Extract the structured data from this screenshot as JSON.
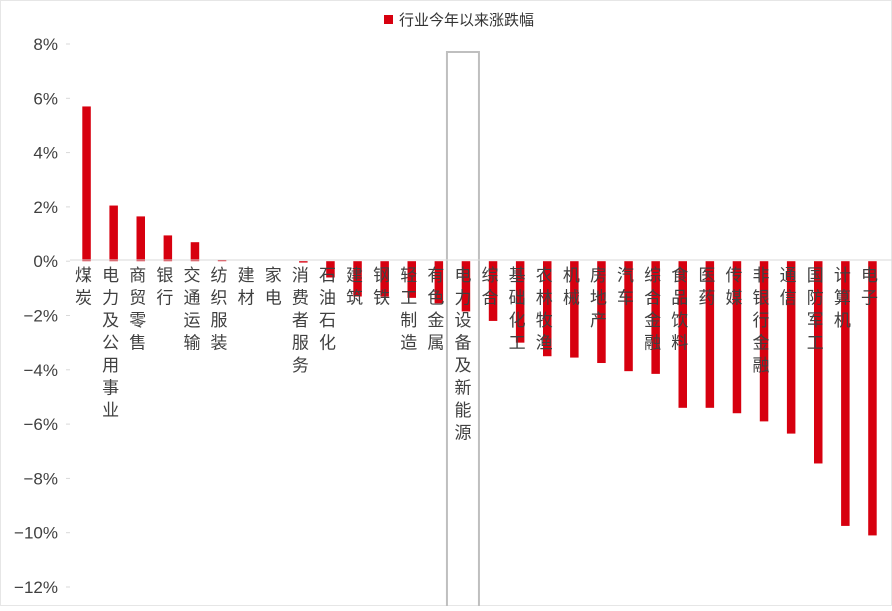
{
  "chart_data": {
    "type": "bar",
    "categories": [
      "煤炭",
      "电力及公用事业",
      "商贸零售",
      "银行",
      "交通运输",
      "纺织服装",
      "建材",
      "家电",
      "消费者服务",
      "石油石化",
      "建筑",
      "钢铁",
      "轻工制造",
      "有色金属",
      "电力设备及新能源",
      "综合",
      "基础化工",
      "农林牧渔",
      "机械",
      "房地产",
      "汽车",
      "综合金融",
      "食品饮料",
      "医药",
      "传媒",
      "非银行金融",
      "通信",
      "国防军工",
      "计算机",
      "电子"
    ],
    "series": [
      {
        "name": "行业今年以来涨跌幅",
        "values": [
          5.7,
          2.05,
          1.65,
          0.95,
          0.7,
          0.05,
          0.0,
          0.0,
          -0.05,
          -0.6,
          -1.3,
          -1.3,
          -1.35,
          -1.55,
          -1.85,
          -2.2,
          -3.0,
          -3.5,
          -3.55,
          -3.75,
          -4.05,
          -4.15,
          -5.4,
          -5.4,
          -5.6,
          -5.9,
          -6.35,
          -7.45,
          -9.75,
          -10.1
        ]
      }
    ],
    "ylim": [
      -12,
      8
    ],
    "yticks": [
      8,
      6,
      4,
      2,
      0,
      -2,
      -4,
      -6,
      -8,
      -10,
      -12
    ],
    "ytick_labels": [
      "8%",
      "6%",
      "4%",
      "2%",
      "0%",
      "−2%",
      "−4%",
      "−6%",
      "−8%",
      "−10%",
      "−12%"
    ],
    "xlabel": "",
    "ylabel": "",
    "legend_position": "top-center",
    "grid": false,
    "highlighted_category": "电力设备及新能源",
    "bar_color": "#D7000F",
    "highlight_box_color": "#BFBFBF",
    "axis_color": "#D9D9D9",
    "text_color": "#404040"
  }
}
